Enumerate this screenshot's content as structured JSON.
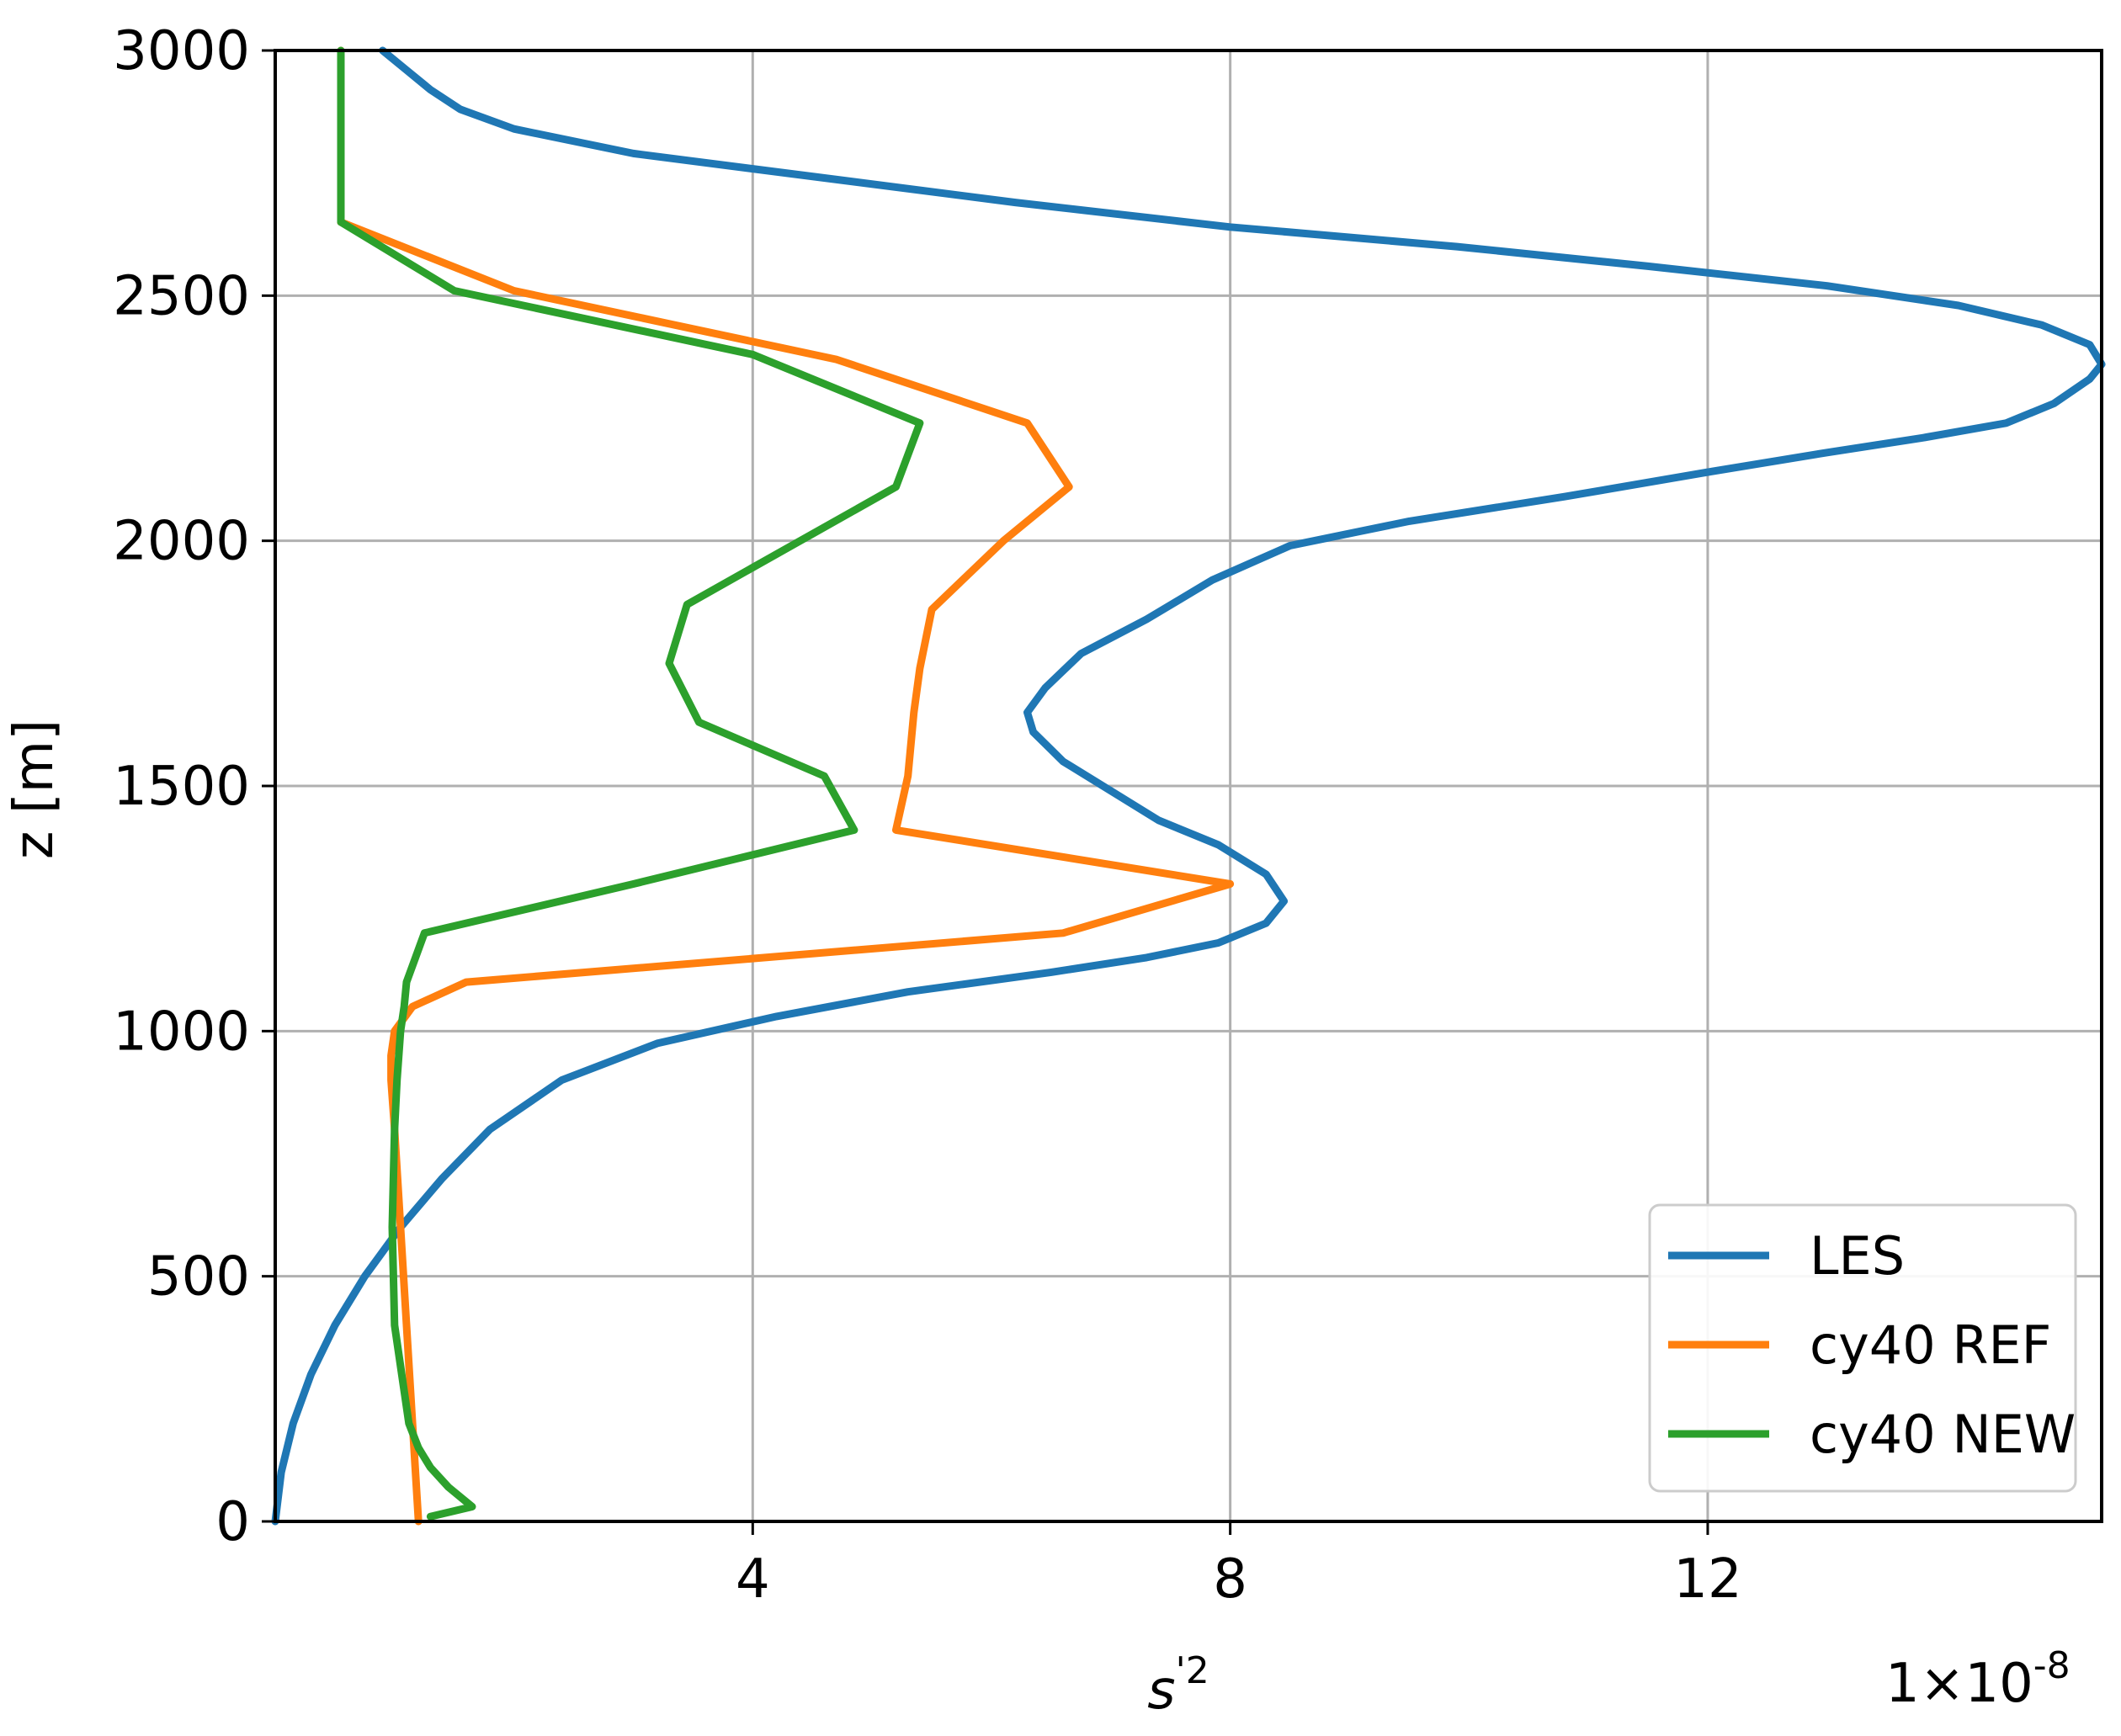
{
  "chart_data": {
    "type": "line",
    "xlabel": "s",
    "xlabel_superscript": "'2",
    "ylabel": "z [m]",
    "x_multiplier": "1×10",
    "x_multiplier_exponent": "-8",
    "xlim": [
      0,
      15.3
    ],
    "ylim": [
      0,
      3000
    ],
    "xticks": [
      4,
      8,
      12
    ],
    "xtick_labels": [
      "4",
      "8",
      "12"
    ],
    "yticks": [
      0,
      500,
      1000,
      1500,
      2000,
      2500,
      3000
    ],
    "ytick_labels": [
      "0",
      "500",
      "1000",
      "1500",
      "2000",
      "2500",
      "3000"
    ],
    "grid": true,
    "legend_position": "lower-right",
    "series": [
      {
        "name": "LES",
        "color": "#1f77b4",
        "x": [
          0.0,
          0.05,
          0.15,
          0.3,
          0.5,
          0.75,
          1.05,
          1.4,
          1.8,
          2.4,
          3.2,
          4.2,
          5.3,
          6.5,
          7.3,
          7.9,
          8.3,
          8.45,
          8.3,
          7.9,
          7.4,
          7.0,
          6.6,
          6.35,
          6.3,
          6.45,
          6.75,
          7.3,
          7.85,
          8.5,
          9.5,
          10.8,
          12.0,
          13.0,
          13.8,
          14.5,
          14.9,
          15.2,
          15.3,
          15.2,
          14.8,
          14.1,
          13.0,
          11.5,
          9.9,
          8.0,
          6.2,
          4.6,
          3.0,
          2.0,
          1.55,
          1.3,
          1.1,
          0.9
        ],
        "y": [
          0,
          100,
          200,
          300,
          400,
          500,
          600,
          700,
          800,
          900,
          975,
          1030,
          1080,
          1120,
          1150,
          1180,
          1220,
          1265,
          1320,
          1380,
          1430,
          1490,
          1550,
          1610,
          1650,
          1700,
          1770,
          1840,
          1920,
          1990,
          2040,
          2090,
          2140,
          2180,
          2210,
          2240,
          2280,
          2330,
          2360,
          2400,
          2440,
          2480,
          2520,
          2560,
          2600,
          2640,
          2690,
          2740,
          2790,
          2840,
          2880,
          2920,
          2960,
          3000
        ]
      },
      {
        "name": "cy40 REF",
        "color": "#ff7f0e",
        "x": [
          1.2,
          1.15,
          1.1,
          1.05,
          1.0,
          0.97,
          0.97,
          1.0,
          1.15,
          1.6,
          6.6,
          8.0,
          5.2,
          5.3,
          5.35,
          5.4,
          5.5,
          6.1,
          6.65,
          6.3,
          4.7,
          2.0,
          0.55,
          0.55,
          0.55
        ],
        "y": [
          0,
          200,
          400,
          600,
          800,
          900,
          950,
          1000,
          1050,
          1100,
          1200,
          1300,
          1410,
          1520,
          1650,
          1740,
          1860,
          2000,
          2110,
          2240,
          2370,
          2510,
          2650,
          2850,
          3000
        ]
      },
      {
        "name": "cy40 NEW",
        "color": "#2ca02c",
        "x": [
          1.3,
          1.65,
          1.45,
          1.3,
          1.2,
          1.12,
          1.0,
          0.98,
          1.0,
          1.02,
          1.05,
          1.08,
          1.1,
          1.25,
          3.0,
          4.85,
          4.6,
          3.55,
          3.3,
          3.45,
          5.2,
          5.4,
          4.0,
          1.5,
          0.55,
          0.55,
          0.55
        ],
        "y": [
          10,
          30,
          70,
          110,
          150,
          200,
          400,
          600,
          800,
          900,
          1000,
          1050,
          1100,
          1200,
          1300,
          1410,
          1520,
          1630,
          1750,
          1870,
          2110,
          2240,
          2380,
          2510,
          2650,
          2850,
          3000
        ]
      }
    ]
  }
}
